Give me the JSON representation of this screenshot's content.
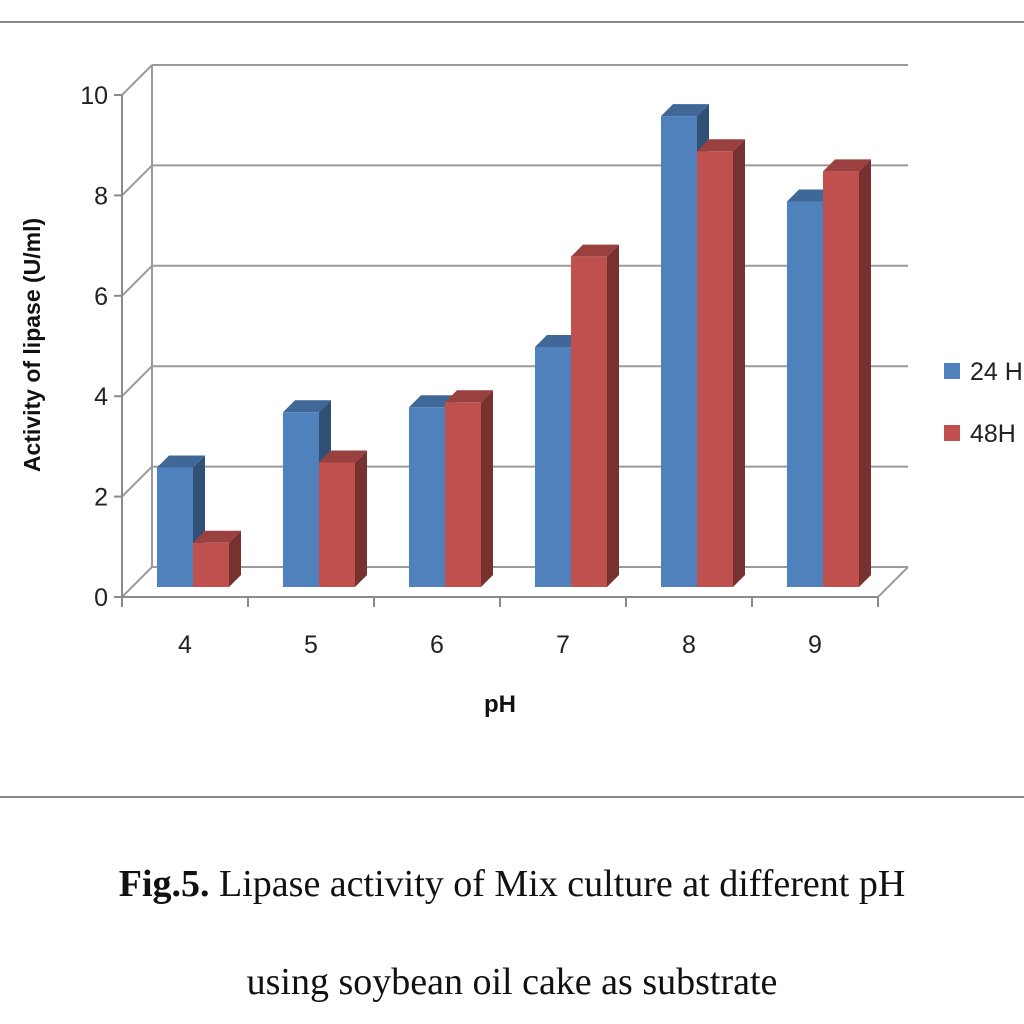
{
  "caption": {
    "label": "Fig.5.",
    "line1": "Lipase activity of Mix culture at different pH",
    "line2": "using soybean oil cake as substrate"
  },
  "chart_data": {
    "type": "bar",
    "style": "3d-clustered-column",
    "categories": [
      "4",
      "5",
      "6",
      "7",
      "8",
      "9"
    ],
    "series": [
      {
        "name": "24 H",
        "color": "#4F81BD",
        "values": [
          2.5,
          3.6,
          3.7,
          4.9,
          9.5,
          7.8
        ]
      },
      {
        "name": "48H",
        "color": "#C0504D",
        "values": [
          1.0,
          2.6,
          3.8,
          6.7,
          8.8,
          8.4
        ]
      }
    ],
    "xlabel": "pH",
    "ylabel": "Activity of lipase (U/ml)",
    "ylim": [
      0,
      10
    ],
    "yticks": [
      "0",
      "2",
      "4",
      "6",
      "8",
      "10"
    ],
    "grid": true,
    "legend": "right"
  }
}
